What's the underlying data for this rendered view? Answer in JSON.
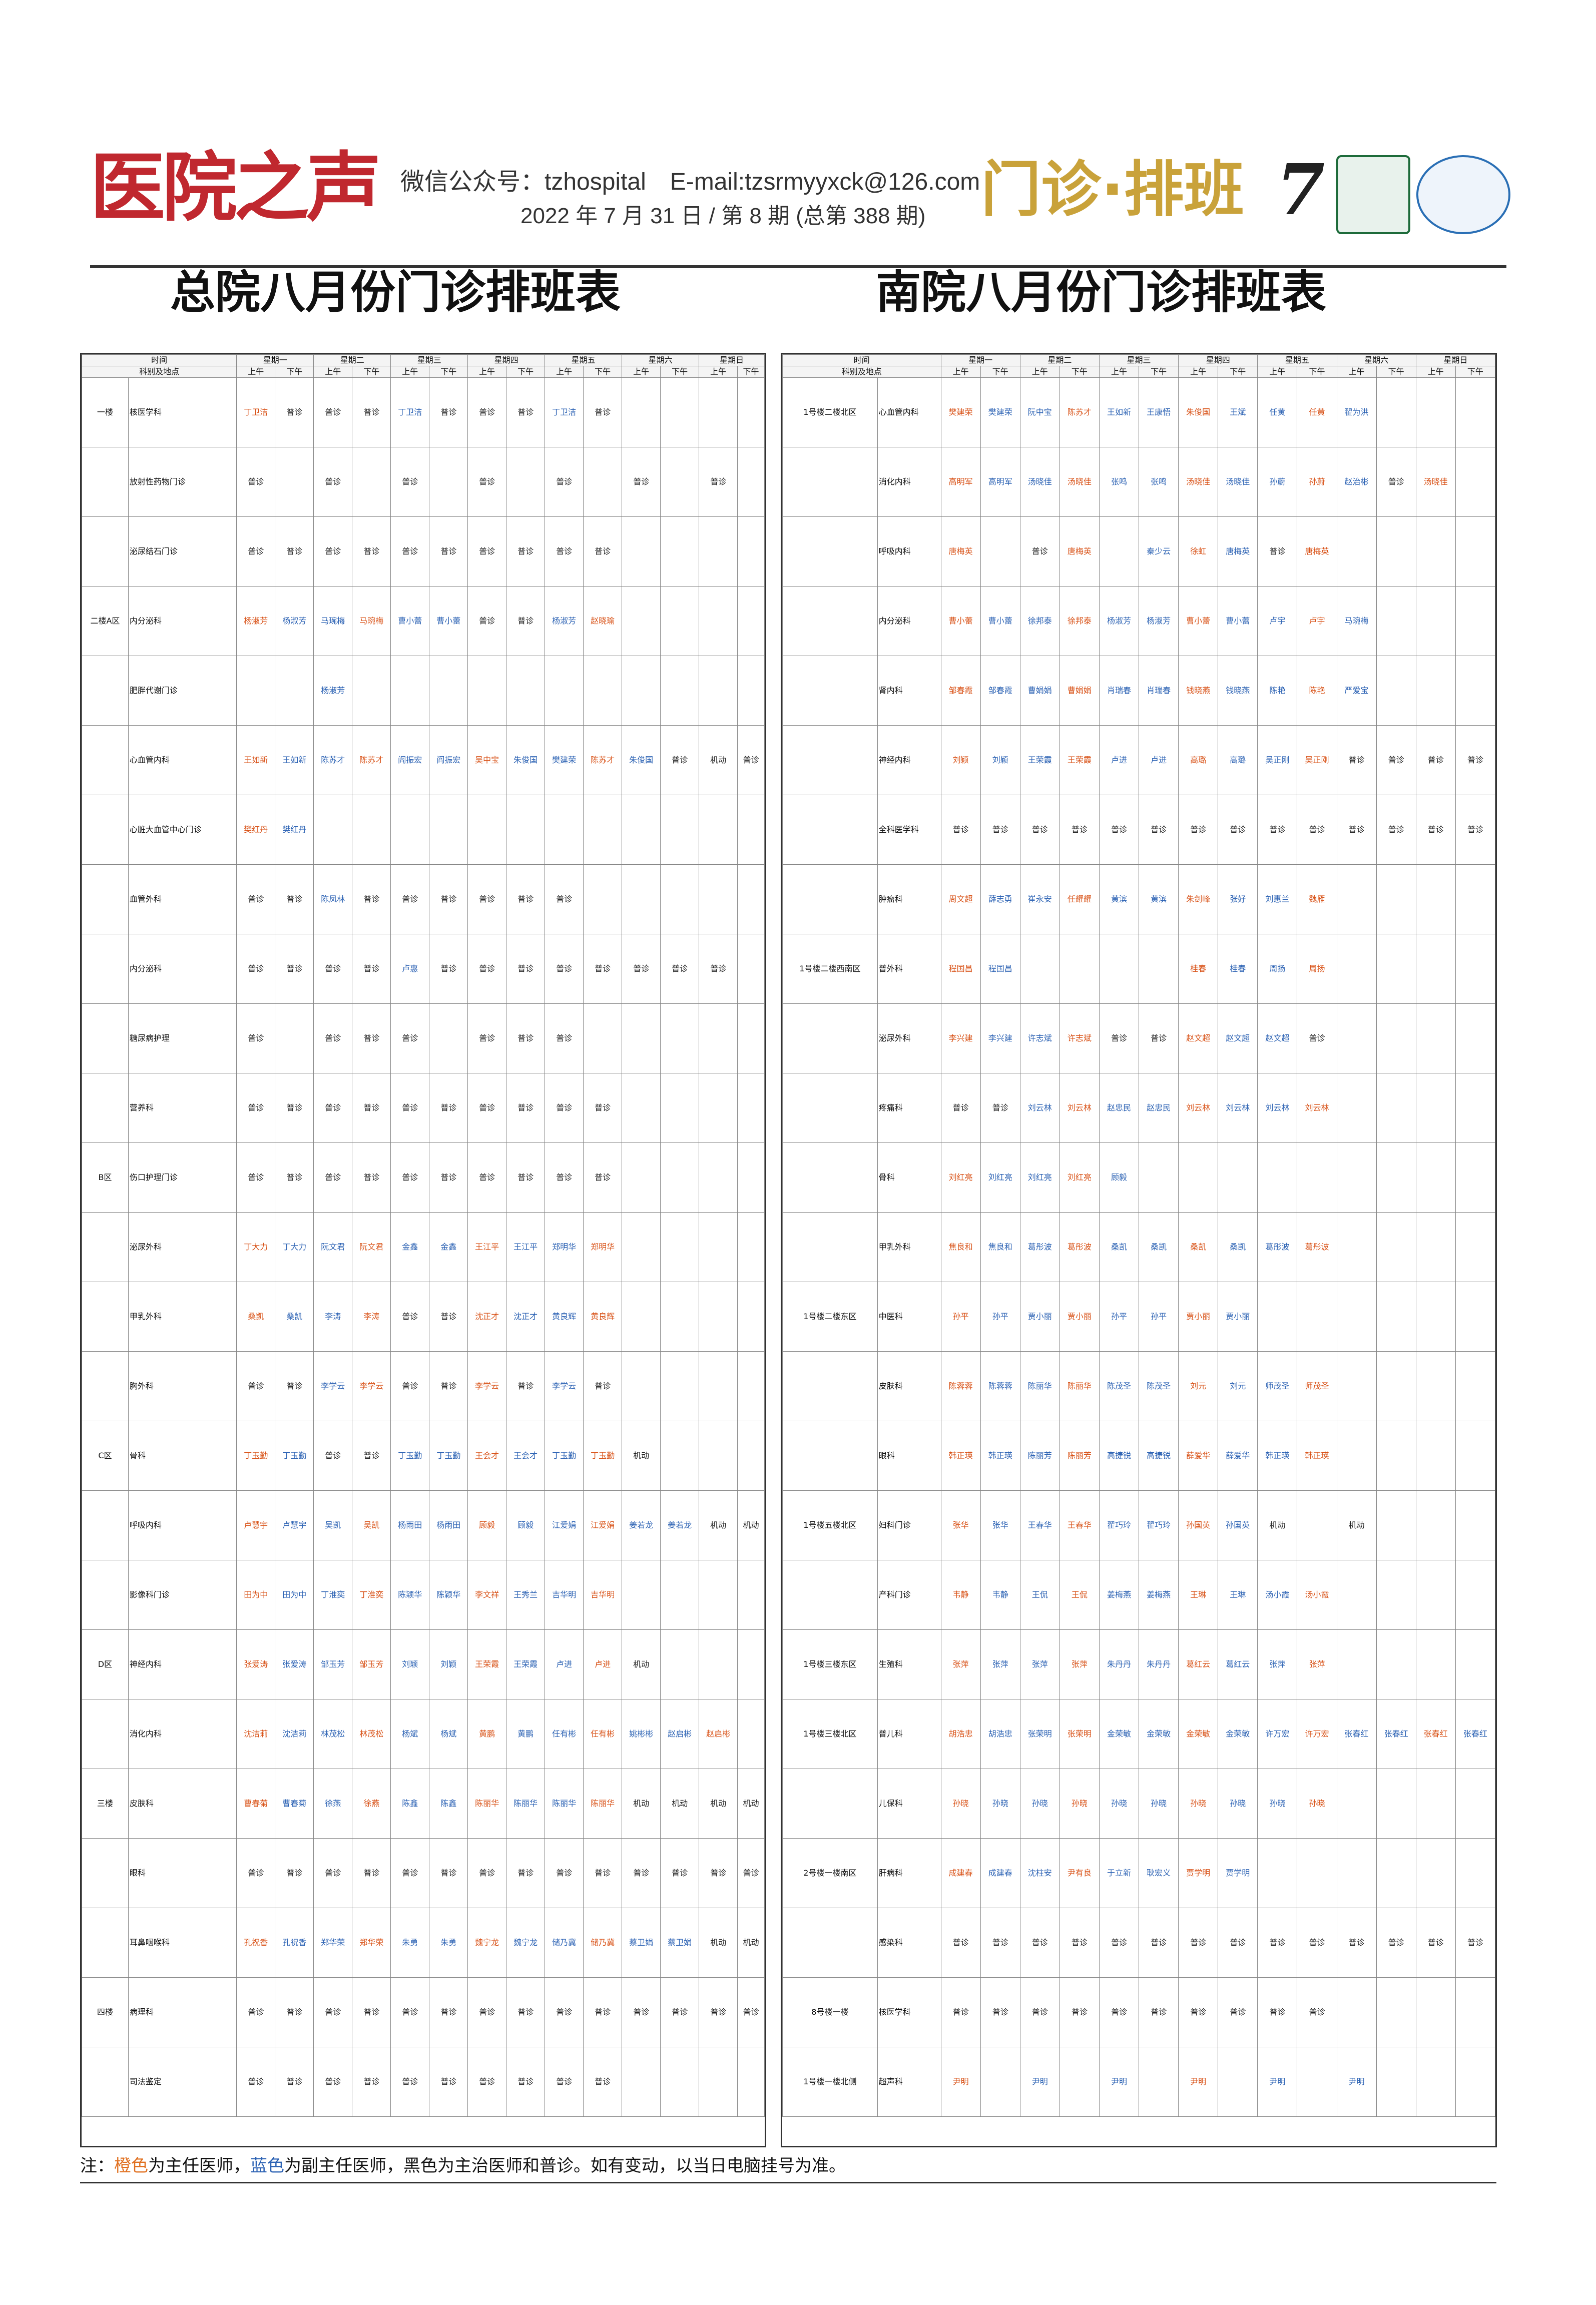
{
  "masthead": {
    "logo": "医院之声",
    "contact": "微信公众号：tzhospital　E-mail:tzsrmyyxck@126.com",
    "issue": "2022 年 7 月 31 日 / 第 8 期 (总第 388 期)",
    "section": "门诊·排班",
    "page_number": "7"
  },
  "left": {
    "title": "总院八月份门诊排班表",
    "col_header": "时间",
    "row_header": "科别及地点",
    "days": [
      "星期一",
      "星期二",
      "星期三",
      "星期四",
      "星期五",
      "星期六",
      "星期日"
    ],
    "halves": [
      "上午",
      "下午"
    ],
    "rows": [
      {
        "area": "一楼",
        "dept": "核医学科",
        "cells": [
          "丁卫洁",
          "普诊",
          "普诊",
          "普诊",
          "丁卫洁",
          "普诊",
          "普诊",
          "普诊",
          "丁卫洁",
          "普诊",
          "",
          "",
          "",
          ""
        ]
      },
      {
        "area": "",
        "dept": "放射性药物门诊",
        "cells": [
          "普诊",
          "",
          "普诊",
          "",
          "普诊",
          "",
          "普诊",
          "",
          "普诊",
          "",
          "普诊",
          "",
          "普诊",
          ""
        ]
      },
      {
        "area": "",
        "dept": "泌尿结石门诊",
        "cells": [
          "普诊",
          "普诊",
          "普诊",
          "普诊",
          "普诊",
          "普诊",
          "普诊",
          "普诊",
          "普诊",
          "普诊",
          "",
          "",
          "",
          ""
        ]
      },
      {
        "area": "二楼A区",
        "dept": "内分泌科",
        "cells": [
          "杨淑芳",
          "杨淑芳",
          "马琬梅",
          "马琬梅",
          "曹小蕾",
          "曹小蕾",
          "普诊",
          "普诊",
          "杨淑芳",
          "赵晓瑜",
          "",
          "",
          "",
          ""
        ]
      },
      {
        "area": "",
        "dept": "肥胖代谢门诊",
        "cells": [
          "",
          "",
          "杨淑芳",
          "",
          "",
          "",
          "",
          "",
          "",
          "",
          "",
          "",
          "",
          ""
        ]
      },
      {
        "area": "",
        "dept": "心血管内科",
        "cells": [
          "王如新",
          "王如新",
          "陈苏才",
          "陈苏才",
          "阎振宏",
          "阎振宏",
          "吴中宝",
          "朱俊国",
          "樊建荣",
          "陈苏才",
          "朱俊国",
          "普诊",
          "机动",
          "普诊"
        ]
      },
      {
        "area": "",
        "dept": "心脏大血管中心门诊",
        "cells": [
          "樊红丹",
          "樊红丹",
          "",
          "",
          "",
          "",
          "",
          "",
          "",
          "",
          "",
          "",
          "",
          ""
        ]
      },
      {
        "area": "",
        "dept": "血管外科",
        "cells": [
          "普诊",
          "普诊",
          "陈凤林",
          "普诊",
          "普诊",
          "普诊",
          "普诊",
          "普诊",
          "普诊",
          "",
          "",
          "",
          "",
          ""
        ]
      },
      {
        "area": "",
        "dept": "内分泌科",
        "cells": [
          "普诊",
          "普诊",
          "普诊",
          "普诊",
          "卢惠",
          "普诊",
          "普诊",
          "普诊",
          "普诊",
          "普诊",
          "普诊",
          "普诊",
          "普诊",
          ""
        ]
      },
      {
        "area": "",
        "dept": "糖尿病护理",
        "cells": [
          "普诊",
          "",
          "普诊",
          "普诊",
          "普诊",
          "",
          "普诊",
          "普诊",
          "普诊",
          "",
          "",
          "",
          "",
          ""
        ]
      },
      {
        "area": "",
        "dept": "营养科",
        "cells": [
          "普诊",
          "普诊",
          "普诊",
          "普诊",
          "普诊",
          "普诊",
          "普诊",
          "普诊",
          "普诊",
          "普诊",
          "",
          "",
          "",
          ""
        ]
      },
      {
        "area": "B区",
        "dept": "伤口护理门诊",
        "cells": [
          "普诊",
          "普诊",
          "普诊",
          "普诊",
          "普诊",
          "普诊",
          "普诊",
          "普诊",
          "普诊",
          "普诊",
          "",
          "",
          "",
          ""
        ]
      },
      {
        "area": "",
        "dept": "泌尿外科",
        "cells": [
          "丁大力",
          "丁大力",
          "阮文君",
          "阮文君",
          "金鑫",
          "金鑫",
          "王江平",
          "王江平",
          "郑明华",
          "郑明华",
          "",
          "",
          "",
          ""
        ]
      },
      {
        "area": "",
        "dept": "甲乳外科",
        "cells": [
          "桑凯",
          "桑凯",
          "李涛",
          "李涛",
          "普诊",
          "普诊",
          "沈正才",
          "沈正才",
          "黄良辉",
          "黄良辉",
          "",
          "",
          "",
          ""
        ]
      },
      {
        "area": "",
        "dept": "胸外科",
        "cells": [
          "普诊",
          "普诊",
          "李学云",
          "李学云",
          "普诊",
          "普诊",
          "李学云",
          "普诊",
          "李学云",
          "普诊",
          "",
          "",
          "",
          ""
        ]
      },
      {
        "area": "C区",
        "dept": "骨科",
        "cells": [
          "丁玉勤",
          "丁玉勤",
          "普诊",
          "普诊",
          "丁玉勤",
          "丁玉勤",
          "王会才",
          "王会才",
          "丁玉勤",
          "丁玉勤",
          "机动",
          "",
          "",
          ""
        ]
      },
      {
        "area": "",
        "dept": "呼吸内科",
        "cells": [
          "卢慧宇",
          "卢慧宇",
          "吴凯",
          "吴凯",
          "杨雨田",
          "杨雨田",
          "顾毅",
          "顾毅",
          "江爱娟",
          "江爱娟",
          "姜若龙",
          "姜若龙",
          "机动",
          "机动"
        ]
      },
      {
        "area": "",
        "dept": "影像科门诊",
        "cells": [
          "田为中",
          "田为中",
          "丁淮奕",
          "丁淮奕",
          "陈颖华",
          "陈颖华",
          "李文祥",
          "王秀兰",
          "吉华明",
          "吉华明",
          "",
          "",
          "",
          ""
        ]
      },
      {
        "area": "D区",
        "dept": "神经内科",
        "cells": [
          "张爱涛",
          "张爱涛",
          "邹玉芳",
          "邹玉芳",
          "刘颖",
          "刘颖",
          "王荣霞",
          "王荣霞",
          "卢进",
          "卢进",
          "机动",
          "",
          "",
          ""
        ]
      },
      {
        "area": "",
        "dept": "消化内科",
        "cells": [
          "沈洁莉",
          "沈洁莉",
          "林茂松",
          "林茂松",
          "杨斌",
          "杨斌",
          "黄鹏",
          "黄鹏",
          "任有彬",
          "任有彬",
          "姚彬彬",
          "赵启彬",
          "赵启彬",
          ""
        ]
      },
      {
        "area": "三楼",
        "dept": "皮肤科",
        "cells": [
          "曹春菊",
          "曹春菊",
          "徐燕",
          "徐燕",
          "陈鑫",
          "陈鑫",
          "陈丽华",
          "陈丽华",
          "陈丽华",
          "陈丽华",
          "机动",
          "机动",
          "机动",
          "机动"
        ]
      },
      {
        "area": "",
        "dept": "眼科",
        "cells": [
          "普诊",
          "普诊",
          "普诊",
          "普诊",
          "普诊",
          "普诊",
          "普诊",
          "普诊",
          "普诊",
          "普诊",
          "普诊",
          "普诊",
          "普诊",
          "普诊"
        ]
      },
      {
        "area": "",
        "dept": "耳鼻咽喉科",
        "cells": [
          "孔祝香",
          "孔祝香",
          "郑华荣",
          "郑华荣",
          "朱勇",
          "朱勇",
          "魏宁龙",
          "魏宁龙",
          "储乃冀",
          "储乃冀",
          "蔡卫娟",
          "蔡卫娟",
          "机动",
          "机动"
        ]
      },
      {
        "area": "四楼",
        "dept": "病理科",
        "cells": [
          "普诊",
          "普诊",
          "普诊",
          "普诊",
          "普诊",
          "普诊",
          "普诊",
          "普诊",
          "普诊",
          "普诊",
          "普诊",
          "普诊",
          "普诊",
          "普诊"
        ]
      },
      {
        "area": "",
        "dept": "司法鉴定",
        "cells": [
          "普诊",
          "普诊",
          "普诊",
          "普诊",
          "普诊",
          "普诊",
          "普诊",
          "普诊",
          "普诊",
          "普诊",
          "",
          "",
          "",
          ""
        ]
      }
    ]
  },
  "right": {
    "title": "南院八月份门诊排班表",
    "col_header": "时间",
    "row_header": "科别及地点",
    "days": [
      "星期一",
      "星期二",
      "星期三",
      "星期四",
      "星期五",
      "星期六",
      "星期日"
    ],
    "halves": [
      "上午",
      "下午"
    ],
    "rows": [
      {
        "area": "1号楼二楼北区",
        "dept": "心血管内科",
        "cells": [
          "樊建荣",
          "樊建荣",
          "阮中宝",
          "陈苏才",
          "王如新",
          "王康悟",
          "朱俊国",
          "王斌",
          "任黄",
          "任黄",
          "翟为洪",
          "",
          "",
          ""
        ]
      },
      {
        "area": "",
        "dept": "消化内科",
        "cells": [
          "高明军",
          "高明军",
          "汤晓佳",
          "汤晓佳",
          "张鸣",
          "张鸣",
          "汤晓佳",
          "汤晓佳",
          "孙蔚",
          "孙蔚",
          "赵治彬",
          "普诊",
          "汤晓佳",
          ""
        ]
      },
      {
        "area": "",
        "dept": "呼吸内科",
        "cells": [
          "唐梅英",
          "",
          "普诊",
          "唐梅英",
          "",
          "秦少云",
          "徐虹",
          "唐梅英",
          "普诊",
          "唐梅英",
          "",
          "",
          "",
          ""
        ]
      },
      {
        "area": "",
        "dept": "内分泌科",
        "cells": [
          "曹小蕾",
          "曹小蕾",
          "徐邦泰",
          "徐邦泰",
          "杨淑芳",
          "杨淑芳",
          "曹小蕾",
          "曹小蕾",
          "卢宇",
          "卢宇",
          "马琬梅",
          "",
          "",
          ""
        ]
      },
      {
        "area": "",
        "dept": "肾内科",
        "cells": [
          "邹春霞",
          "邹春霞",
          "曹娟娟",
          "曹娟娟",
          "肖瑞春",
          "肖瑞春",
          "钱晓燕",
          "钱晓燕",
          "陈艳",
          "陈艳",
          "严爱宝",
          "",
          "",
          ""
        ]
      },
      {
        "area": "",
        "dept": "神经内科",
        "cells": [
          "刘颖",
          "刘颖",
          "王荣霞",
          "王荣霞",
          "卢进",
          "卢进",
          "高璐",
          "高璐",
          "吴正刚",
          "吴正刚",
          "普诊",
          "普诊",
          "普诊",
          "普诊"
        ]
      },
      {
        "area": "",
        "dept": "全科医学科",
        "cells": [
          "普诊",
          "普诊",
          "普诊",
          "普诊",
          "普诊",
          "普诊",
          "普诊",
          "普诊",
          "普诊",
          "普诊",
          "普诊",
          "普诊",
          "普诊",
          "普诊"
        ]
      },
      {
        "area": "",
        "dept": "肿瘤科",
        "cells": [
          "周文超",
          "薛志勇",
          "崔永安",
          "任耀耀",
          "黄滨",
          "黄滨",
          "朱剑峰",
          "张好",
          "刘惠兰",
          "魏雁",
          "",
          "",
          "",
          ""
        ]
      },
      {
        "area": "1号楼二楼西南区",
        "dept": "普外科",
        "cells": [
          "程国昌",
          "程国昌",
          "",
          "",
          "",
          "",
          "桂春",
          "桂春",
          "周扬",
          "周扬",
          "",
          "",
          "",
          ""
        ]
      },
      {
        "area": "",
        "dept": "泌尿外科",
        "cells": [
          "李兴建",
          "李兴建",
          "许志斌",
          "许志斌",
          "普诊",
          "普诊",
          "赵文超",
          "赵文超",
          "赵文超",
          "普诊",
          "",
          "",
          "",
          ""
        ]
      },
      {
        "area": "",
        "dept": "疼痛科",
        "cells": [
          "普诊",
          "普诊",
          "刘云林",
          "刘云林",
          "赵忠民",
          "赵忠民",
          "刘云林",
          "刘云林",
          "刘云林",
          "刘云林",
          "",
          "",
          "",
          ""
        ]
      },
      {
        "area": "",
        "dept": "骨科",
        "cells": [
          "刘红亮",
          "刘红亮",
          "刘红亮",
          "刘红亮",
          "顾毅",
          "",
          "",
          "",
          "",
          "",
          "",
          "",
          "",
          ""
        ]
      },
      {
        "area": "",
        "dept": "甲乳外科",
        "cells": [
          "焦良和",
          "焦良和",
          "葛彤波",
          "葛彤波",
          "桑凯",
          "桑凯",
          "桑凯",
          "桑凯",
          "葛彤波",
          "葛彤波",
          "",
          "",
          "",
          ""
        ]
      },
      {
        "area": "1号楼二楼东区",
        "dept": "中医科",
        "cells": [
          "孙平",
          "孙平",
          "贾小丽",
          "贾小丽",
          "孙平",
          "孙平",
          "贾小丽",
          "贾小丽",
          "",
          "",
          "",
          "",
          "",
          ""
        ]
      },
      {
        "area": "",
        "dept": "皮肤科",
        "cells": [
          "陈蓉蓉",
          "陈蓉蓉",
          "陈丽华",
          "陈丽华",
          "陈茂圣",
          "陈茂圣",
          "刘元",
          "刘元",
          "师茂圣",
          "师茂圣",
          "",
          "",
          "",
          ""
        ]
      },
      {
        "area": "",
        "dept": "眼科",
        "cells": [
          "韩正瑛",
          "韩正瑛",
          "陈丽芳",
          "陈丽芳",
          "高捷锐",
          "高捷锐",
          "薛爱华",
          "薛爱华",
          "韩正瑛",
          "韩正瑛",
          "",
          "",
          "",
          ""
        ]
      },
      {
        "area": "1号楼五楼北区",
        "dept": "妇科门诊",
        "cells": [
          "张华",
          "张华",
          "王春华",
          "王春华",
          "翟巧玲",
          "翟巧玲",
          "孙国英",
          "孙国英",
          "机动",
          "",
          "机动",
          "",
          "",
          ""
        ]
      },
      {
        "area": "",
        "dept": "产科门诊",
        "cells": [
          "韦静",
          "韦静",
          "王侃",
          "王侃",
          "姜梅燕",
          "姜梅燕",
          "王琳",
          "王琳",
          "汤小霞",
          "汤小霞",
          "",
          "",
          "",
          ""
        ]
      },
      {
        "area": "1号楼三楼东区",
        "dept": "生殖科",
        "cells": [
          "张萍",
          "张萍",
          "张萍",
          "张萍",
          "朱丹丹",
          "朱丹丹",
          "葛红云",
          "葛红云",
          "张萍",
          "张萍",
          "",
          "",
          "",
          ""
        ]
      },
      {
        "area": "1号楼三楼北区",
        "dept": "普儿科",
        "cells": [
          "胡浩忠",
          "胡浩忠",
          "张荣明",
          "张荣明",
          "金荣敏",
          "金荣敏",
          "金荣敏",
          "金荣敏",
          "许万宏",
          "许万宏",
          "张春红",
          "张春红",
          "张春红",
          "张春红"
        ]
      },
      {
        "area": "",
        "dept": "儿保科",
        "cells": [
          "孙晓",
          "孙晓",
          "孙晓",
          "孙晓",
          "孙晓",
          "孙晓",
          "孙晓",
          "孙晓",
          "孙晓",
          "孙晓",
          "",
          "",
          "",
          ""
        ]
      },
      {
        "area": "2号楼一楼南区",
        "dept": "肝病科",
        "cells": [
          "成建春",
          "成建春",
          "沈柱安",
          "尹有良",
          "于立新",
          "耿宏义",
          "贾学明",
          "贾学明",
          "",
          "",
          "",
          "",
          "",
          ""
        ]
      },
      {
        "area": "",
        "dept": "感染科",
        "cells": [
          "普诊",
          "普诊",
          "普诊",
          "普诊",
          "普诊",
          "普诊",
          "普诊",
          "普诊",
          "普诊",
          "普诊",
          "普诊",
          "普诊",
          "普诊",
          "普诊"
        ]
      },
      {
        "area": "8号楼一楼",
        "dept": "核医学科",
        "cells": [
          "普诊",
          "普诊",
          "普诊",
          "普诊",
          "普诊",
          "普诊",
          "普诊",
          "普诊",
          "普诊",
          "普诊",
          "",
          "",
          "",
          ""
        ]
      },
      {
        "area": "1号楼一楼北侧",
        "dept": "超声科",
        "cells": [
          "尹明",
          "",
          "尹明",
          "",
          "尹明",
          "",
          "尹明",
          "",
          "尹明",
          "",
          "尹明",
          "",
          "",
          ""
        ]
      }
    ]
  },
  "note": {
    "prefix": "注：",
    "orange_word": "橙色",
    "mid1": "为主任医师，",
    "blue_word": "蓝色",
    "rest": "为副主任医师，黑色为主治医师和普诊。如有变动，以当日电脑挂号为准。"
  },
  "colors": {
    "logo": "#c0282f",
    "section": "#c9a23a",
    "chief": "#e07020",
    "associate": "#2d63b4"
  }
}
